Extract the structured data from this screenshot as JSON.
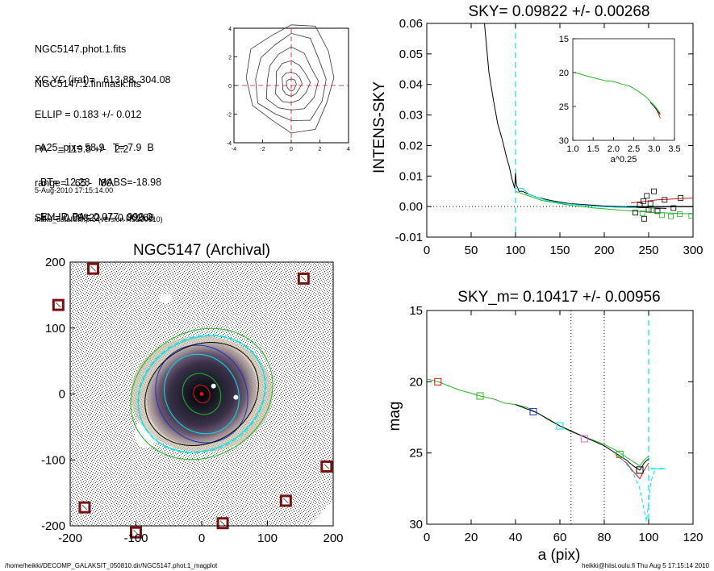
{
  "info": {
    "lines_a": [
      "NGC5147.phot.1.fits",
      "NGC5147.1.finmask.fits"
    ],
    "lines_b": [
      "XC,YC (iraf)=   613.88, 304.08",
      "ELLIP = 0.183 +/- 0.012",
      "PA    = 119.8 +/-   2.2",
      "range=   65.-   80.",
      "SKY= 0.09822 +/- 0.00268"
    ],
    "lines_c": [
      "  A25_pix= 58.9   T= 7.9  B",
      "  BT=  12.28   MABS=-18.98",
      "  ELLIP, PA= 0.077   999.0"
    ],
    "date": "5-Aug-2010 17:15:14.00",
    "program": "make_datalist0.pro (version HS230610)"
  },
  "footer": {
    "left": "/home/heikki/DECOMP_GALAKSIT_050810.dir/NGC5147.phot.1_magplot",
    "right": "heikki@hiisi.oulu.fi  Thu Aug  5 17:15:14 2010"
  },
  "colors": {
    "cyan": "#00e5ee",
    "green": "#22b822",
    "red": "#e01010",
    "black": "#000000",
    "blue": "#2030c0",
    "magenta": "#e060e0"
  },
  "chart_data": [
    {
      "id": "contour",
      "type": "contour",
      "xlim": [
        -4,
        4
      ],
      "ylim": [
        -4,
        4
      ],
      "xticks": [
        "-4",
        "-2",
        "0",
        "2",
        "4"
      ],
      "yticks": [
        "-4",
        "-2",
        "0",
        "2",
        "4"
      ],
      "crosshair": {
        "x": 0,
        "y": 0,
        "color": "red",
        "style": "dashed"
      },
      "levels_radius": [
        0.4,
        0.8,
        1.4,
        2.1,
        2.9,
        3.6
      ]
    },
    {
      "id": "sky_profile",
      "type": "line",
      "title": "SKY= 0.09822 +/- 0.00268",
      "ylabel": "INTENS-SKY",
      "xlim": [
        0,
        300
      ],
      "ylim": [
        -0.01,
        0.06
      ],
      "xticks": [
        "0",
        "50",
        "100",
        "150",
        "200",
        "250",
        "300"
      ],
      "yticks": [
        "-0.01",
        "0.00",
        "0.01",
        "0.02",
        "0.03",
        "0.04",
        "0.05",
        "0.06"
      ],
      "vline_x": 100,
      "series": [
        {
          "color": "black",
          "x": [
            65,
            70,
            75,
            80,
            85,
            90,
            93,
            96,
            99,
            100,
            101,
            104,
            108,
            115,
            125,
            140,
            160,
            180,
            200,
            220,
            240,
            260,
            270
          ],
          "y": [
            0.06,
            0.044,
            0.035,
            0.027,
            0.022,
            0.016,
            0.013,
            0.009,
            0.006,
            0.011,
            0.007,
            0.005,
            0.005,
            0.004,
            0.003,
            0.002,
            0.001,
            0.0006,
            0.0002,
            0.0,
            -0.0003,
            -0.0005,
            -0.0006
          ]
        },
        {
          "color": "cyan",
          "x": [
            100,
            108,
            115,
            125,
            135,
            145,
            155,
            165,
            175,
            185,
            195,
            210,
            225,
            240
          ],
          "y": [
            0.006,
            0.006,
            0.004,
            0.003,
            0.002,
            0.0015,
            0.001,
            0.0007,
            0.0004,
            0.0002,
            0.0,
            -0.0002,
            -0.0003,
            -0.0004
          ]
        },
        {
          "color": "green",
          "x": [
            100,
            130,
            160,
            190,
            220,
            250,
            280,
            300
          ],
          "y": [
            0.005,
            0.002,
            0.0005,
            -0.0005,
            -0.0012,
            -0.0018,
            -0.0022,
            -0.0024
          ]
        },
        {
          "color": "red",
          "x": [
            230,
            260,
            300
          ],
          "y": [
            0.0012,
            0.0022,
            0.0028
          ]
        }
      ],
      "points_black": [
        [
          235,
          -0.002
        ],
        [
          240,
          0.0005
        ],
        [
          244,
          0.0018
        ],
        [
          248,
          0.0035
        ],
        [
          252,
          0.001
        ],
        [
          256,
          0.005
        ],
        [
          250,
          -0.001
        ],
        [
          245,
          -0.004
        ],
        [
          260,
          -0.0015
        ],
        [
          268,
          0.0022
        ],
        [
          278,
          -0.0005
        ],
        [
          286,
          0.0028
        ]
      ],
      "points_green": [
        [
          243,
          -0.0022
        ],
        [
          253,
          -0.0012
        ],
        [
          265,
          -0.0028
        ],
        [
          275,
          -0.0032
        ],
        [
          285,
          -0.0025
        ],
        [
          298,
          -0.003
        ]
      ],
      "inset": {
        "xlim": [
          1.0,
          3.5
        ],
        "ylim": [
          15,
          30
        ],
        "xlabel": "a^0.25",
        "xticks": [
          "1.0",
          "1.5",
          "2.0",
          "2.5",
          "3.0",
          "3.5"
        ],
        "yticks": [
          "15",
          "20",
          "25",
          "30"
        ],
        "x": [
          1.05,
          1.4,
          1.8,
          2.0,
          2.2,
          2.4,
          2.6,
          2.8,
          2.9,
          3.0,
          3.1,
          3.15
        ],
        "y": [
          20.0,
          20.6,
          21.2,
          21.3,
          21.7,
          22.0,
          22.7,
          23.6,
          24.2,
          24.8,
          25.6,
          26.0
        ],
        "red_tail_x": [
          3.05,
          3.1,
          3.15
        ],
        "red_tail_y": [
          25.2,
          26.0,
          26.7
        ]
      }
    },
    {
      "id": "image_panel",
      "type": "image",
      "title": "NGC5147 (Archival)",
      "xlim": [
        -200,
        200
      ],
      "ylim": [
        -200,
        200
      ],
      "xticks": [
        "-200",
        "-100",
        "0",
        "100",
        "200"
      ],
      "yticks": [
        "-200",
        "-100",
        "0",
        "100",
        "200"
      ],
      "ellipses": [
        {
          "rx": 12,
          "ry": 14,
          "color": "red"
        },
        {
          "rx": 28,
          "ry": 32,
          "color": "green"
        },
        {
          "rx": 55,
          "ry": 62,
          "color": "cyan"
        },
        {
          "rx": 68,
          "ry": 76,
          "color": "blue"
        },
        {
          "rx": 90,
          "ry": 74,
          "color": "black"
        },
        {
          "rx": 100,
          "ry": 84,
          "color": "cyan"
        },
        {
          "rx": 112,
          "ry": 95,
          "color": "green"
        }
      ],
      "masked_stars": [
        [
          -165,
          190
        ],
        [
          155,
          175
        ],
        [
          -218,
          135
        ],
        [
          190,
          -110
        ],
        [
          -178,
          -172
        ],
        [
          128,
          -162
        ],
        [
          32,
          -196
        ],
        [
          -100,
          -210
        ]
      ]
    },
    {
      "id": "mag_profile",
      "type": "line",
      "title": "SKY_m=  0.10417 +/- 0.00956",
      "xlabel": "a (pix)",
      "ylabel": "mag",
      "xlim": [
        0,
        120
      ],
      "ylim": [
        30,
        15
      ],
      "xticks": [
        "0",
        "20",
        "40",
        "60",
        "80",
        "100",
        "120"
      ],
      "yticks": [
        "15",
        "20",
        "25",
        "30"
      ],
      "dotted_vlines": [
        65,
        80
      ],
      "cyan_vline": 100,
      "series": [
        {
          "color": "green",
          "x": [
            0,
            5,
            10,
            15,
            20,
            24,
            30,
            35,
            40,
            45,
            50,
            55,
            60,
            65,
            70,
            75,
            80,
            85,
            90,
            93,
            96,
            98,
            100
          ],
          "y": [
            19.8,
            20.0,
            20.3,
            20.6,
            20.8,
            21.0,
            21.2,
            21.5,
            21.6,
            21.8,
            22.2,
            22.7,
            23.1,
            23.5,
            23.8,
            24.1,
            24.4,
            24.8,
            25.3,
            25.6,
            25.9,
            25.5,
            25.2
          ]
        },
        {
          "color": "black",
          "x": [
            40,
            50,
            60,
            70,
            80,
            85,
            90,
            93,
            96,
            98,
            100
          ],
          "y": [
            21.6,
            22.2,
            23.1,
            23.8,
            24.5,
            25.0,
            25.5,
            25.9,
            26.2,
            25.7,
            25.4
          ]
        },
        {
          "color": "red",
          "x": [
            85,
            90,
            93,
            96,
            98,
            100
          ],
          "y": [
            25.1,
            25.7,
            26.3,
            26.8,
            26.2,
            25.7
          ]
        },
        {
          "color": "cyan",
          "x": [
            88,
            93,
            96,
            99,
            101,
            103,
            108
          ],
          "y": [
            25.4,
            26.4,
            27.5,
            29.8,
            27.0,
            26.1,
            26.1
          ]
        }
      ],
      "markers": [
        {
          "x": 5,
          "y": 20.0,
          "color": "red"
        },
        {
          "x": 24,
          "y": 21.0,
          "color": "green"
        },
        {
          "x": 48,
          "y": 22.1,
          "color": "blue"
        },
        {
          "x": 60,
          "y": 23.1,
          "color": "cyan"
        },
        {
          "x": 71,
          "y": 24.0,
          "color": "magenta"
        },
        {
          "x": 87,
          "y": 25.1,
          "color": "green"
        },
        {
          "x": 96,
          "y": 26.2,
          "color": "black"
        }
      ]
    }
  ]
}
